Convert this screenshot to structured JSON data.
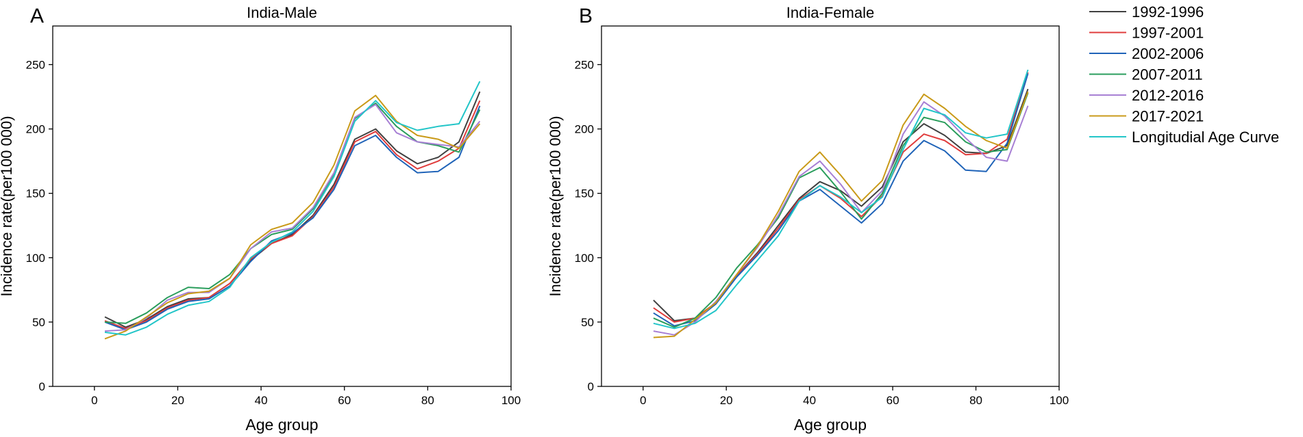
{
  "chart_data": [
    {
      "type": "line",
      "panel_letter": "A",
      "title": "India-Male",
      "xlabel": "Age group",
      "ylabel": "Incidence rate(per100 000)",
      "xlim": [
        -10,
        100
      ],
      "ylim": [
        0,
        280
      ],
      "xticks": [
        "0",
        "20",
        "40",
        "60",
        "80",
        "100"
      ],
      "yticks": [
        "0",
        "50",
        "100",
        "150",
        "200",
        "250"
      ],
      "x": [
        2.5,
        7.5,
        12.5,
        17.5,
        22.5,
        27.5,
        32.5,
        37.5,
        42.5,
        47.5,
        52.5,
        57.5,
        62.5,
        67.5,
        72.5,
        77.5,
        82.5,
        87.5,
        92.5
      ],
      "series": [
        {
          "name": "1992-1996",
          "color": "#404040",
          "values": [
            54,
            46,
            52,
            62,
            68,
            69,
            80,
            98,
            111,
            118,
            133,
            157,
            192,
            200,
            183,
            173,
            178,
            190,
            229
          ]
        },
        {
          "name": "1997-2001",
          "color": "#e03c3c",
          "values": [
            51,
            45,
            51,
            61,
            67,
            69,
            80,
            99,
            111,
            117,
            132,
            155,
            190,
            198,
            180,
            169,
            175,
            185,
            222
          ]
        },
        {
          "name": "2002-2006",
          "color": "#1f63b8",
          "values": [
            50,
            44,
            50,
            60,
            66,
            68,
            78,
            97,
            113,
            119,
            131,
            153,
            187,
            195,
            178,
            166,
            167,
            178,
            218
          ]
        },
        {
          "name": "2007-2011",
          "color": "#2a9d5c",
          "values": [
            50,
            49,
            57,
            69,
            77,
            76,
            87,
            107,
            118,
            122,
            138,
            165,
            208,
            220,
            202,
            190,
            187,
            182,
            215
          ]
        },
        {
          "name": "2012-2016",
          "color": "#a77fd4",
          "values": [
            43,
            44,
            53,
            67,
            73,
            73,
            84,
            107,
            120,
            123,
            139,
            166,
            209,
            219,
            197,
            190,
            188,
            186,
            206
          ]
        },
        {
          "name": "2017-2021",
          "color": "#c99a18",
          "values": [
            37,
            43,
            54,
            65,
            72,
            74,
            84,
            110,
            122,
            127,
            143,
            172,
            214,
            226,
            206,
            195,
            192,
            185,
            204
          ]
        },
        {
          "name": "Longitudial Age Curve",
          "color": "#22c5c8",
          "values": [
            42,
            40,
            46,
            56,
            63,
            66,
            77,
            100,
            112,
            120,
            136,
            163,
            206,
            222,
            205,
            199,
            202,
            204,
            237
          ]
        }
      ]
    },
    {
      "type": "line",
      "panel_letter": "B",
      "title": "India-Female",
      "xlabel": "Age group",
      "ylabel": "Incidence rate(per100 000)",
      "xlim": [
        -10,
        100
      ],
      "ylim": [
        0,
        280
      ],
      "xticks": [
        "0",
        "20",
        "40",
        "60",
        "80",
        "100"
      ],
      "yticks": [
        "0",
        "50",
        "100",
        "150",
        "200",
        "250"
      ],
      "x": [
        2.5,
        7.5,
        12.5,
        17.5,
        22.5,
        27.5,
        32.5,
        37.5,
        42.5,
        47.5,
        52.5,
        57.5,
        62.5,
        67.5,
        72.5,
        77.5,
        82.5,
        87.5,
        92.5
      ],
      "series": [
        {
          "name": "1992-1996",
          "color": "#404040",
          "values": [
            67,
            51,
            53,
            65,
            86,
            104,
            125,
            146,
            159,
            152,
            140,
            155,
            190,
            204,
            195,
            182,
            181,
            187,
            231
          ]
        },
        {
          "name": "1997-2001",
          "color": "#e03c3c",
          "values": [
            61,
            50,
            53,
            65,
            86,
            103,
            123,
            145,
            156,
            146,
            132,
            148,
            182,
            196,
            191,
            180,
            181,
            192,
            244
          ]
        },
        {
          "name": "2002-2006",
          "color": "#1f63b8",
          "values": [
            57,
            47,
            51,
            64,
            85,
            102,
            121,
            144,
            153,
            140,
            127,
            142,
            175,
            191,
            183,
            168,
            167,
            189,
            243
          ]
        },
        {
          "name": "2007-2011",
          "color": "#2a9d5c",
          "values": [
            53,
            46,
            53,
            69,
            92,
            110,
            131,
            162,
            170,
            151,
            130,
            150,
            187,
            209,
            205,
            190,
            182,
            184,
            228
          ]
        },
        {
          "name": "2012-2016",
          "color": "#a77fd4",
          "values": [
            43,
            40,
            50,
            66,
            87,
            108,
            133,
            163,
            175,
            157,
            135,
            152,
            196,
            221,
            210,
            193,
            178,
            175,
            218
          ]
        },
        {
          "name": "2017-2021",
          "color": "#c99a18",
          "values": [
            38,
            39,
            52,
            65,
            87,
            109,
            136,
            167,
            182,
            164,
            144,
            160,
            203,
            227,
            216,
            202,
            191,
            185,
            229
          ]
        },
        {
          "name": "Longitudial Age Curve",
          "color": "#22c5c8",
          "values": [
            49,
            45,
            49,
            59,
            79,
            98,
            117,
            144,
            156,
            147,
            135,
            147,
            184,
            216,
            211,
            197,
            193,
            196,
            246
          ]
        }
      ]
    }
  ],
  "legend": {
    "placement": "right",
    "items": [
      {
        "label": "1992-1996",
        "color": "#404040"
      },
      {
        "label": "1997-2001",
        "color": "#e03c3c"
      },
      {
        "label": "2002-2006",
        "color": "#1f63b8"
      },
      {
        "label": "2007-2011",
        "color": "#2a9d5c"
      },
      {
        "label": "2012-2016",
        "color": "#a77fd4"
      },
      {
        "label": "2017-2021",
        "color": "#c99a18"
      },
      {
        "label": "Longitudial Age Curve",
        "color": "#22c5c8"
      }
    ]
  }
}
